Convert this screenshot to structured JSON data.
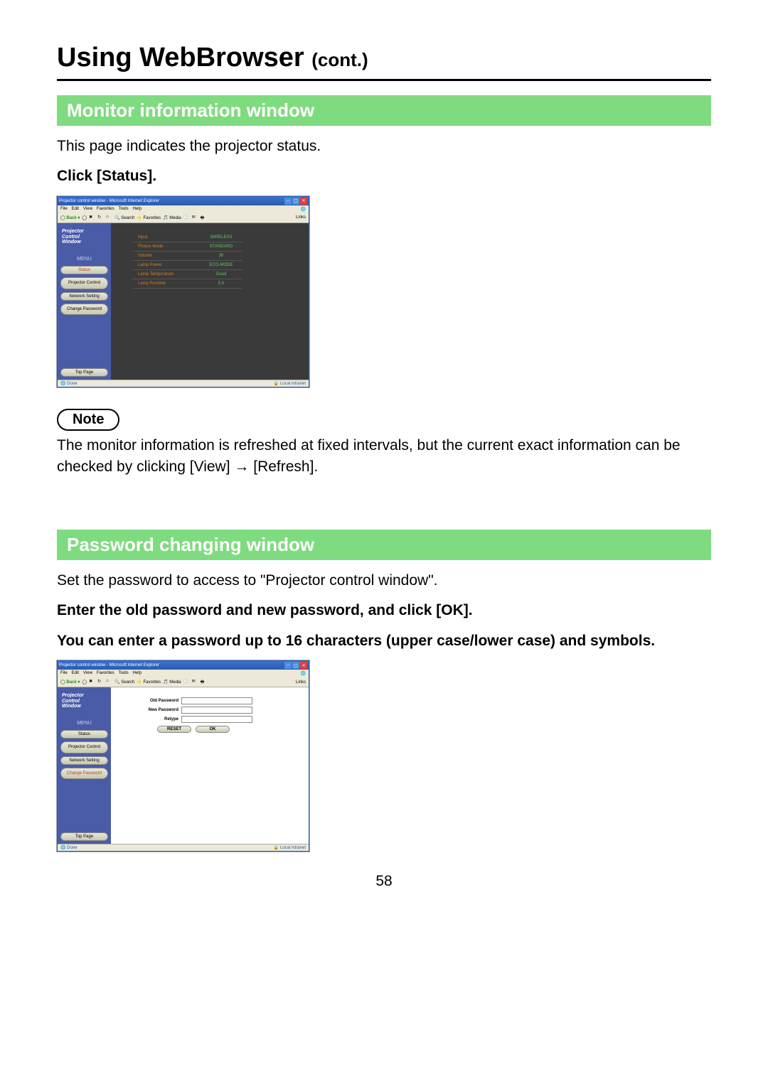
{
  "page": {
    "title_main": "Using WebBrowser ",
    "title_cont": "(cont.)",
    "page_number": "58"
  },
  "section1": {
    "heading": "Monitor information window",
    "intro": "This page indicates the projector status.",
    "click": "Click [Status].",
    "note_label": "Note",
    "note_text": "The monitor information is refreshed at fixed intervals, but the current exact information can be checked by clicking [View] → [Refresh]."
  },
  "section2": {
    "heading": "Password changing window",
    "intro": "Set the password to access to \"Projector control window\".",
    "instr1": "Enter the old password and new password, and click [OK].",
    "instr2": "You can enter a password up to 16 characters (upper case/lower case) and symbols."
  },
  "ie": {
    "title": "Projector control window - Microsoft Internet Explorer",
    "menu": {
      "file": "File",
      "edit": "Edit",
      "view": "View",
      "favorites": "Favorites",
      "tools": "Tools",
      "help": "Help"
    },
    "toolbar": {
      "back": "Back",
      "search": "Search",
      "favorites": "Favorites",
      "media": "Media",
      "links": "Links"
    },
    "status_done": "Done",
    "status_zone": "Local intranet",
    "sidebar": {
      "logo_l1": "Projector",
      "logo_l2": "Control",
      "logo_l3": "Window",
      "menu": "MENU",
      "status": "Status",
      "projector_control": "Projector\nControl",
      "network_setting": "Network Setting",
      "change_password": "Change\nPassword",
      "top_page": "Top Page"
    }
  },
  "status_rows": [
    {
      "k": "Input",
      "v": "WIRELESS"
    },
    {
      "k": "Picture Mode",
      "v": "STANDARD"
    },
    {
      "k": "Volume",
      "v": "30"
    },
    {
      "k": "Lamp Power",
      "v": "ECO-MODE"
    },
    {
      "k": "Lamp Temperature",
      "v": "Good"
    },
    {
      "k": "Lamp Runtime",
      "v": "5 h"
    }
  ],
  "pw_form": {
    "old": "Old Password",
    "new": "New Password",
    "retype": "Retype",
    "reset": "RESET",
    "ok": "OK"
  },
  "colors": {
    "section_bar_bg": "#7fdb7f",
    "section_bar_fg": "#ffffff",
    "ie_title_bg": "#2a5ca8",
    "sidebar_bg": "#4a5ca8",
    "status_key": "#d08020",
    "status_val": "#60c860",
    "content_dark": "#3a3a3a"
  }
}
